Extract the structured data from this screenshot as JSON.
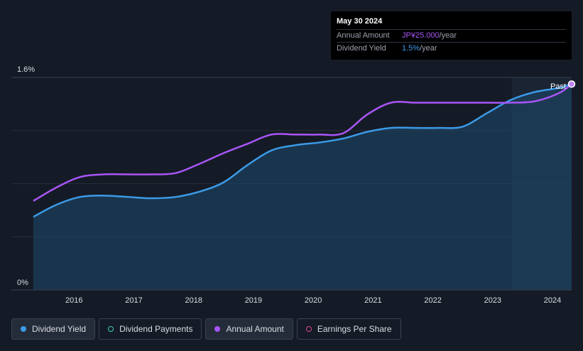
{
  "tooltip": {
    "date": "May 30 2024",
    "rows": [
      {
        "label": "Annual Amount",
        "value": "JP¥25.000",
        "unit": "/year"
      },
      {
        "label": "Dividend Yield",
        "value": "1.5%",
        "unit": "/year"
      }
    ]
  },
  "legend": {
    "items": [
      {
        "label": "Dividend Yield",
        "color": "#3b9be8",
        "style": "filled"
      },
      {
        "label": "Dividend Payments",
        "color": "#3ecfb0",
        "style": "ring"
      },
      {
        "label": "Annual Amount",
        "color": "#a855f7",
        "style": "filled"
      },
      {
        "label": "Earnings Per Share",
        "color": "#d9468a",
        "style": "ring"
      }
    ]
  },
  "chart_data": {
    "type": "line",
    "y_tick_labels": [
      "1.6%",
      "0%"
    ],
    "ylim": [
      0,
      1.6
    ],
    "x_tick_labels": [
      "2016",
      "2017",
      "2018",
      "2019",
      "2020",
      "2021",
      "2022",
      "2023",
      "2024"
    ],
    "xlim": [
      2015.42,
      2024.42
    ],
    "past_label": "Past",
    "forecast_start": 2023.42,
    "grid": true,
    "series": [
      {
        "name": "Dividend Yield",
        "color": "#3b9be8",
        "area": true,
        "points": [
          [
            2015.42,
            0.55
          ],
          [
            2015.8,
            0.64
          ],
          [
            2016.2,
            0.7
          ],
          [
            2016.6,
            0.71
          ],
          [
            2017.0,
            0.7
          ],
          [
            2017.4,
            0.69
          ],
          [
            2017.8,
            0.7
          ],
          [
            2018.2,
            0.74
          ],
          [
            2018.6,
            0.81
          ],
          [
            2019.0,
            0.94
          ],
          [
            2019.4,
            1.05
          ],
          [
            2019.8,
            1.09
          ],
          [
            2020.2,
            1.11
          ],
          [
            2020.6,
            1.14
          ],
          [
            2021.0,
            1.19
          ],
          [
            2021.4,
            1.22
          ],
          [
            2021.8,
            1.22
          ],
          [
            2022.2,
            1.22
          ],
          [
            2022.6,
            1.23
          ],
          [
            2023.0,
            1.33
          ],
          [
            2023.4,
            1.43
          ],
          [
            2023.8,
            1.49
          ],
          [
            2024.2,
            1.52
          ],
          [
            2024.42,
            1.55
          ]
        ]
      },
      {
        "name": "Annual Amount",
        "color": "#a855f7",
        "area": false,
        "points": [
          [
            2015.42,
            0.67
          ],
          [
            2015.8,
            0.77
          ],
          [
            2016.2,
            0.85
          ],
          [
            2016.6,
            0.87
          ],
          [
            2017.0,
            0.87
          ],
          [
            2017.4,
            0.87
          ],
          [
            2017.8,
            0.88
          ],
          [
            2018.2,
            0.95
          ],
          [
            2018.6,
            1.03
          ],
          [
            2019.0,
            1.1
          ],
          [
            2019.4,
            1.17
          ],
          [
            2019.8,
            1.17
          ],
          [
            2020.2,
            1.17
          ],
          [
            2020.6,
            1.18
          ],
          [
            2021.0,
            1.32
          ],
          [
            2021.4,
            1.41
          ],
          [
            2021.8,
            1.41
          ],
          [
            2022.2,
            1.41
          ],
          [
            2022.6,
            1.41
          ],
          [
            2023.0,
            1.41
          ],
          [
            2023.4,
            1.41
          ],
          [
            2023.8,
            1.42
          ],
          [
            2024.2,
            1.48
          ],
          [
            2024.42,
            1.55
          ]
        ]
      }
    ]
  }
}
